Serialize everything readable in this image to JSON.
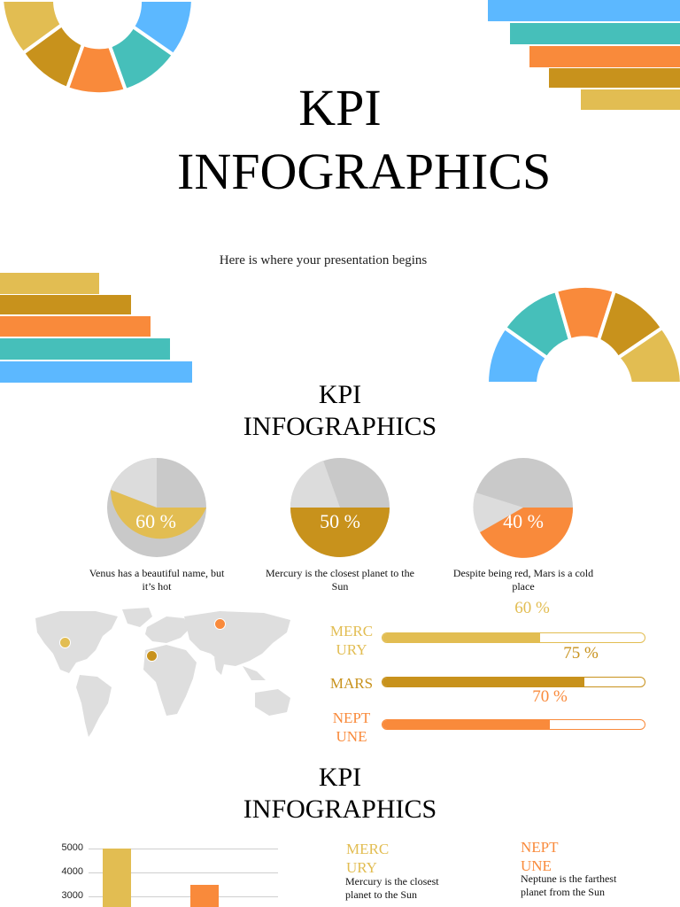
{
  "colors": {
    "yellow": "#E2BD52",
    "gold": "#C8921C",
    "orange": "#F98A3B",
    "teal": "#46BFBA",
    "blue": "#5CB8FF",
    "light_gray": "#DCDCDC",
    "mid_gray": "#C9C9C9"
  },
  "cover": {
    "title": "KPI INFOGRAPHICS",
    "subtitle": "Here is where your presentation begins"
  },
  "slide2": {
    "title": "KPI INFOGRAPHICS",
    "pies": [
      {
        "percent": "60 %",
        "value": 60,
        "caption": "Venus has a beautiful name, but it’s hot",
        "color_key": "yellow"
      },
      {
        "percent": "50 %",
        "value": 50,
        "caption": "Mercury is the closest planet to the Sun",
        "color_key": "gold"
      },
      {
        "percent": "40 %",
        "value": 40,
        "caption": "Despite being red, Mars is a cold place",
        "color_key": "orange"
      }
    ],
    "map_icon": "world-map-icon",
    "progress": [
      {
        "label": "MERC URY",
        "percent": "60 %",
        "value": 60
      },
      {
        "label": "MARS",
        "percent": "75 %",
        "value": 75
      },
      {
        "label": "NEPT UNE",
        "percent": "70 %",
        "value": 70
      }
    ]
  },
  "slide3": {
    "title": "KPI INFOGRAPHICS",
    "chart_data": {
      "type": "bar",
      "y_ticks": [
        "5000",
        "4000",
        "3000"
      ],
      "ylim": [
        3000,
        5000
      ],
      "values": [
        5000,
        3500
      ]
    },
    "planets": [
      {
        "name": "MERC URY",
        "desc": "Mercury is the closest planet to the Sun"
      },
      {
        "name": "NEPT UNE",
        "desc": "Neptune is the farthest planet from the Sun"
      }
    ]
  }
}
